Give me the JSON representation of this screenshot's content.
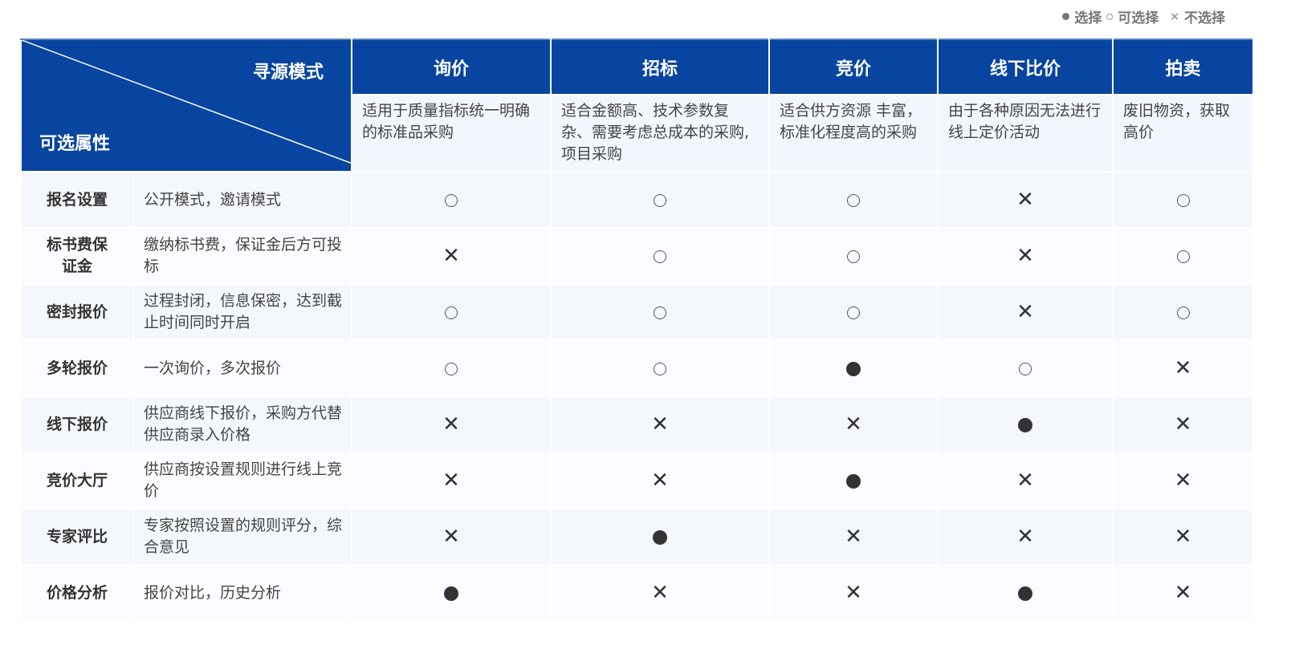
{
  "legend": {
    "selected": "选择",
    "optional": "可选择",
    "not_selected": "不选择",
    "selected_icon": "filled-circle",
    "optional_icon": "hollow-circle",
    "not_selected_icon": "cross"
  },
  "corner": {
    "top": "寻源模式",
    "bottom": "可选属性"
  },
  "modes": [
    {
      "name": "询价",
      "desc": "适用于质量指标统一明确的标准品采购"
    },
    {
      "name": "招标",
      "desc": "适合金额高、技术参数复杂、需要考虑总成本的采购,项目采购"
    },
    {
      "name": "竞价",
      "desc": "适合供方资源 丰富，标准化程度高的采购"
    },
    {
      "name": "线下比价",
      "desc": "由于各种原因无法进行线上定价活动"
    },
    {
      "name": "拍卖",
      "desc": "废旧物资，获取高价"
    }
  ],
  "rows": [
    {
      "label": "报名设置",
      "info": "公开模式，邀请模式",
      "marks": [
        "open",
        "open",
        "open",
        "x",
        "open"
      ]
    },
    {
      "label": "标书费保证金",
      "info": "缴纳标书费，保证金后方可投标",
      "marks": [
        "x",
        "open",
        "open",
        "x",
        "open"
      ]
    },
    {
      "label": "密封报价",
      "info": "过程封闭，信息保密，达到截止时间同时开启",
      "marks": [
        "open",
        "open",
        "open",
        "x",
        "open"
      ]
    },
    {
      "label": "多轮报价",
      "info": "一次询价，多次报价",
      "marks": [
        "open",
        "open",
        "full",
        "open",
        "x"
      ]
    },
    {
      "label": "线下报价",
      "info": "供应商线下报价，采购方代替供应商录入价格",
      "marks": [
        "x",
        "x",
        "x",
        "full",
        "x"
      ]
    },
    {
      "label": "竞价大厅",
      "info": "供应商按设置规则进行线上竞价",
      "marks": [
        "x",
        "x",
        "full",
        "x",
        "x"
      ]
    },
    {
      "label": "专家评比",
      "info": "专家按照设置的规则评分，综合意见",
      "marks": [
        "x",
        "full",
        "x",
        "x",
        "x"
      ]
    },
    {
      "label": "价格分析",
      "info": "报价对比，历史分析",
      "marks": [
        "full",
        "x",
        "x",
        "full",
        "x"
      ]
    }
  ],
  "colors": {
    "header": "#0845a0",
    "row_bg": "#f4f8fd"
  }
}
